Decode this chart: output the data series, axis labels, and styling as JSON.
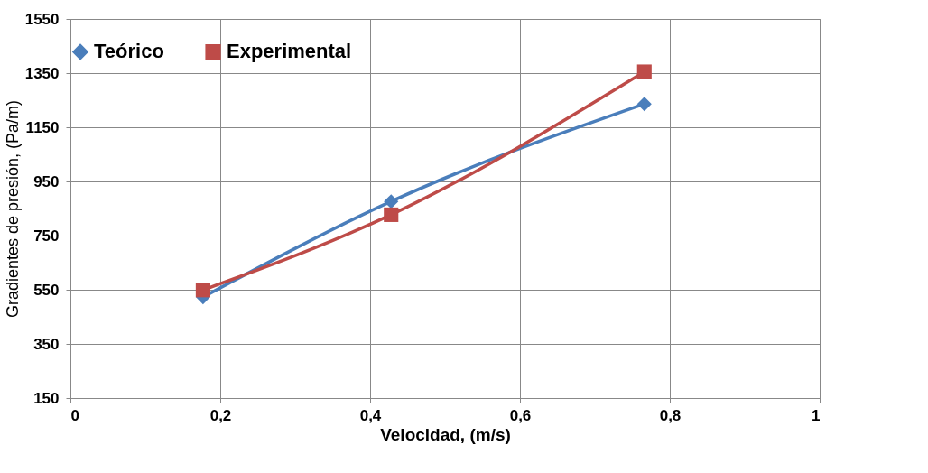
{
  "chart_data": {
    "type": "line",
    "xlabel": "Velocidad, (m/s)",
    "ylabel": "Gradientes de presión, (Pa/m)",
    "x": [
      0.177,
      0.428,
      0.766
    ],
    "series": [
      {
        "name": "Teórico",
        "color": "#4a7ebb",
        "marker": "diamond",
        "values": [
          523,
          876,
          1236
        ]
      },
      {
        "name": "Experimental",
        "color": "#be4b48",
        "marker": "square",
        "values": [
          549,
          827,
          1355
        ]
      }
    ],
    "xlim": [
      0,
      1
    ],
    "xticks": [
      {
        "value": 0,
        "label": "0"
      },
      {
        "value": 0.2,
        "label": "0,2"
      },
      {
        "value": 0.4,
        "label": "0,4"
      },
      {
        "value": 0.6,
        "label": "0,6"
      },
      {
        "value": 0.8,
        "label": "0,8"
      },
      {
        "value": 1,
        "label": "1"
      }
    ],
    "ylim": [
      150,
      1550
    ],
    "yticks": [
      150,
      350,
      550,
      750,
      950,
      1150,
      1350,
      1550
    ],
    "grid": true,
    "legend": "top",
    "line_style": "solid"
  }
}
